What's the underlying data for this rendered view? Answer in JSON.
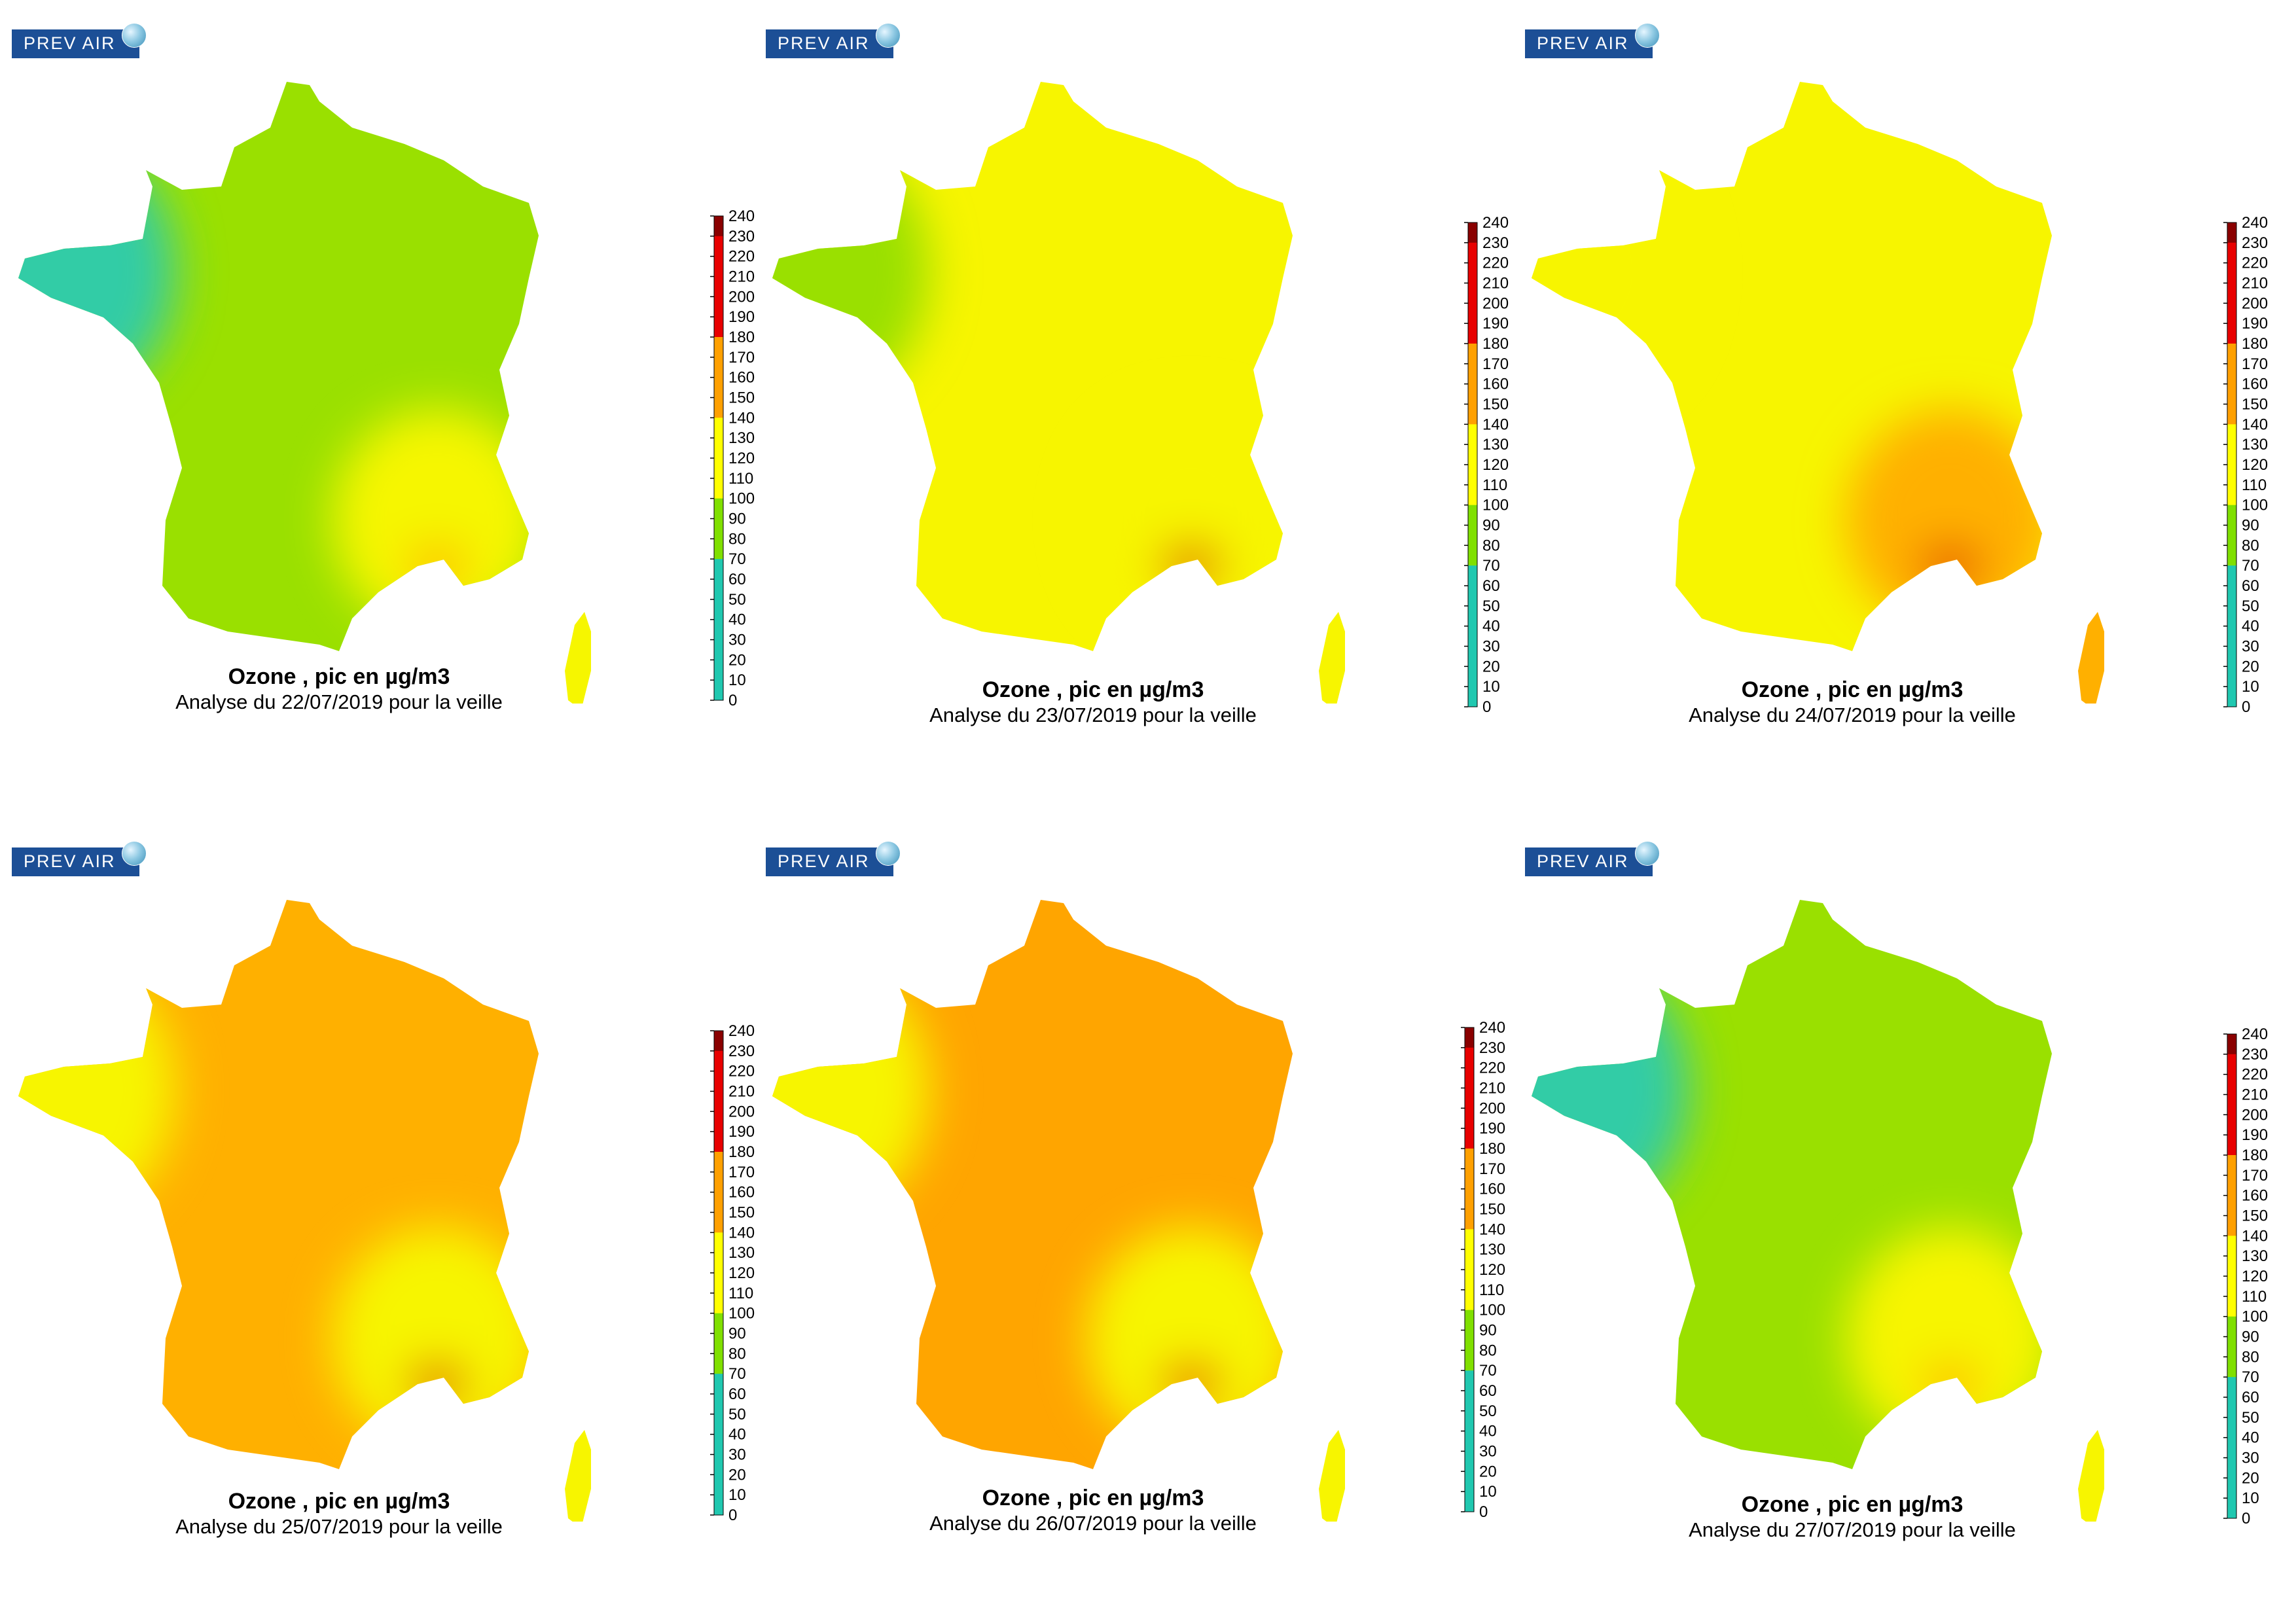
{
  "colorbar": {
    "ticks": [
      "240",
      "230",
      "220",
      "210",
      "200",
      "190",
      "180",
      "170",
      "160",
      "150",
      "140",
      "130",
      "120",
      "110",
      "100",
      "90",
      "80",
      "70",
      "60",
      "50",
      "40",
      "30",
      "20",
      "10",
      "0"
    ],
    "colors": [
      "#20c8b0",
      "#20c8b0",
      "#20c8b0",
      "#20c8b0",
      "#20c8b0",
      "#20c8b0",
      "#20c8b0",
      "#80e000",
      "#80e000",
      "#80e000",
      "#ffff00",
      "#ffff00",
      "#ffff00",
      "#ffff00",
      "#ffa000",
      "#ffa000",
      "#ffa000",
      "#ffa000",
      "#e80000",
      "#e80000",
      "#e80000",
      "#e80000",
      "#e80000",
      "#8a0000"
    ]
  },
  "maps": [
    {
      "logo": "PREV AIR",
      "title": "Ozone , pic en µg/m3",
      "subtitle": "Analyse du 22/07/2019 pour la veille",
      "colors": {
        "main": "#9ae000",
        "west": "#33cca6",
        "southeast": "#f6f600",
        "hotspot": "#ffb000"
      }
    },
    {
      "logo": "PREV AIR",
      "title": "Ozone , pic en µg/m3",
      "subtitle": "Analyse du 23/07/2019 pour la veille",
      "colors": {
        "main": "#f7f500",
        "west": "#9ae000",
        "southeast": "#f7f500",
        "hotspot": "#e02000"
      }
    },
    {
      "logo": "PREV AIR",
      "title": "Ozone , pic en µg/m3",
      "subtitle": "Analyse du 24/07/2019 pour la veille",
      "colors": {
        "main": "#f7f500",
        "west": "#f7f500",
        "southeast": "#ffb000",
        "hotspot": "#e02000"
      }
    },
    {
      "logo": "PREV AIR",
      "title": "Ozone , pic en µg/m3",
      "subtitle": "Analyse du 25/07/2019 pour la veille",
      "colors": {
        "main": "#ffb000",
        "west": "#f7f500",
        "southeast": "#f7f500",
        "hotspot": "#e02000"
      }
    },
    {
      "logo": "PREV AIR",
      "title": "Ozone , pic en µg/m3",
      "subtitle": "Analyse du 26/07/2019 pour la veille",
      "colors": {
        "main": "#ffa500",
        "west": "#f7f500",
        "southeast": "#f7f500",
        "hotspot": "#e80000"
      }
    },
    {
      "logo": "PREV AIR",
      "title": "Ozone , pic en µg/m3",
      "subtitle": "Analyse du 27/07/2019 pour la veille",
      "colors": {
        "main": "#9ae000",
        "west": "#33cca6",
        "southeast": "#f7f500",
        "hotspot": "#ffb000"
      }
    }
  ]
}
